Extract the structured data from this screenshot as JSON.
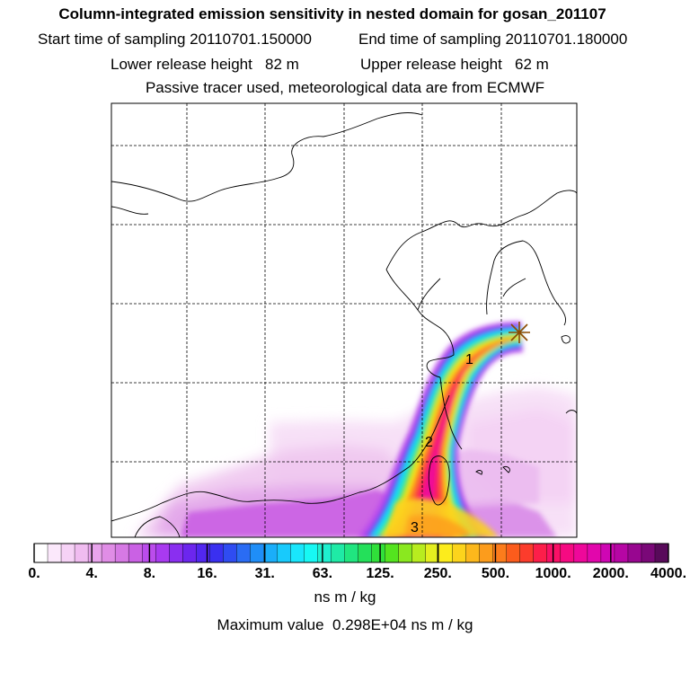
{
  "header": {
    "title": "Column-integrated emission sensitivity in nested domain for gosan_201107",
    "start_label": "Start time of sampling 20110701.150000",
    "end_label": "End time of sampling 20110701.180000",
    "lower_label": "Lower release height   82 m",
    "upper_label": "Upper release height   62 m",
    "tracer_note": "Passive tracer used, meteorological data are from ECMWF"
  },
  "map": {
    "plume_labels": [
      "1",
      "2",
      "3"
    ],
    "release_marker": "star-marker"
  },
  "colorbar": {
    "colors": [
      "#ffffff",
      "#fbe8fb",
      "#f6d2f6",
      "#f0bcf0",
      "#e8a4ec",
      "#e08de6",
      "#d679e4",
      "#ca61e4",
      "#bb4cec",
      "#a93af0",
      "#8a2ff0",
      "#6c26ee",
      "#5227f0",
      "#3a30f0",
      "#2f4cf2",
      "#2a6cf4",
      "#1f8ef8",
      "#1aaefa",
      "#18cafc",
      "#19e6fc",
      "#17f8f4",
      "#1ff0cf",
      "#1feaa6",
      "#20e680",
      "#24e05a",
      "#30e03a",
      "#54e41f",
      "#8ae81f",
      "#b8ec1f",
      "#e4ee1f",
      "#fcec1c",
      "#fcd41c",
      "#fcb81c",
      "#fc9c1c",
      "#fc7c1c",
      "#fc5c1c",
      "#fc3c2c",
      "#fc1e4a",
      "#fa1066",
      "#f60a82",
      "#ee089a",
      "#e206ac",
      "#cf06b4",
      "#b606a4",
      "#980690",
      "#7a0878",
      "#580a5a"
    ],
    "tick_labels": [
      "0.",
      "4.",
      "8.",
      "16.",
      "31.",
      "63.",
      "125.",
      "250.",
      "500.",
      "1000.",
      "2000.",
      "4000."
    ],
    "units": "ns m / kg",
    "maximum_text": "Maximum value  0.298E+04 ns m / kg"
  }
}
